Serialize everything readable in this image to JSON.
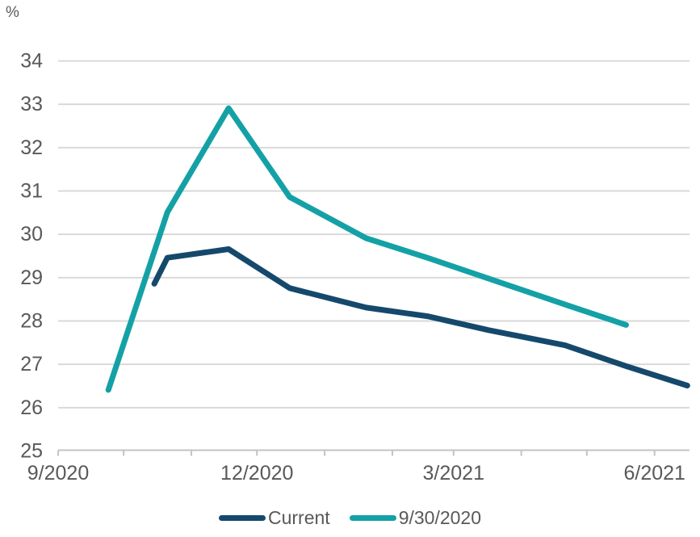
{
  "chart_data": {
    "type": "line",
    "title": "",
    "ylabel": "%",
    "ylim": [
      25,
      34
    ],
    "yticks": [
      25,
      26,
      27,
      28,
      29,
      30,
      31,
      32,
      33,
      34
    ],
    "grid": true,
    "legend_position": "bottom",
    "x_domain": {
      "start": "9/1/2020",
      "days": 289
    },
    "xticks": [
      {
        "date": "9/1/2020",
        "label": "9/2020"
      },
      {
        "date": "10/1/2020",
        "label": ""
      },
      {
        "date": "11/1/2020",
        "label": ""
      },
      {
        "date": "12/1/2020",
        "label": "12/2020"
      },
      {
        "date": "1/1/2021",
        "label": ""
      },
      {
        "date": "2/1/2021",
        "label": ""
      },
      {
        "date": "3/1/2021",
        "label": "3/2021"
      },
      {
        "date": "4/1/2021",
        "label": ""
      },
      {
        "date": "5/1/2021",
        "label": ""
      },
      {
        "date": "6/1/2021",
        "label": "6/2021"
      }
    ],
    "series": [
      {
        "name": "Current",
        "color": "#15496C",
        "points": [
          [
            "10/15/2020",
            28.85
          ],
          [
            "10/21/2020",
            29.45
          ],
          [
            "11/18/2020",
            29.65
          ],
          [
            "12/16/2020",
            28.75
          ],
          [
            "1/20/2021",
            28.3
          ],
          [
            "2/17/2021",
            28.1
          ],
          [
            "3/17/2021",
            27.78
          ],
          [
            "4/21/2021",
            27.43
          ],
          [
            "5/19/2021",
            26.95
          ],
          [
            "6/16/2021",
            26.5
          ]
        ]
      },
      {
        "name": "9/30/2020",
        "color": "#14A1A6",
        "points": [
          [
            "9/24/2020",
            26.4
          ],
          [
            "10/21/2020",
            30.5
          ],
          [
            "11/18/2020",
            32.9
          ],
          [
            "12/16/2020",
            30.85
          ],
          [
            "1/20/2021",
            29.9
          ],
          [
            "2/17/2021",
            29.45
          ],
          [
            "3/17/2021",
            28.97
          ],
          [
            "4/21/2021",
            28.37
          ],
          [
            "5/19/2021",
            27.9
          ]
        ]
      }
    ],
    "colors": {
      "gridline": "#D9D9D9",
      "axis_line": "#C3C3C3",
      "label_text": "#595959"
    }
  }
}
